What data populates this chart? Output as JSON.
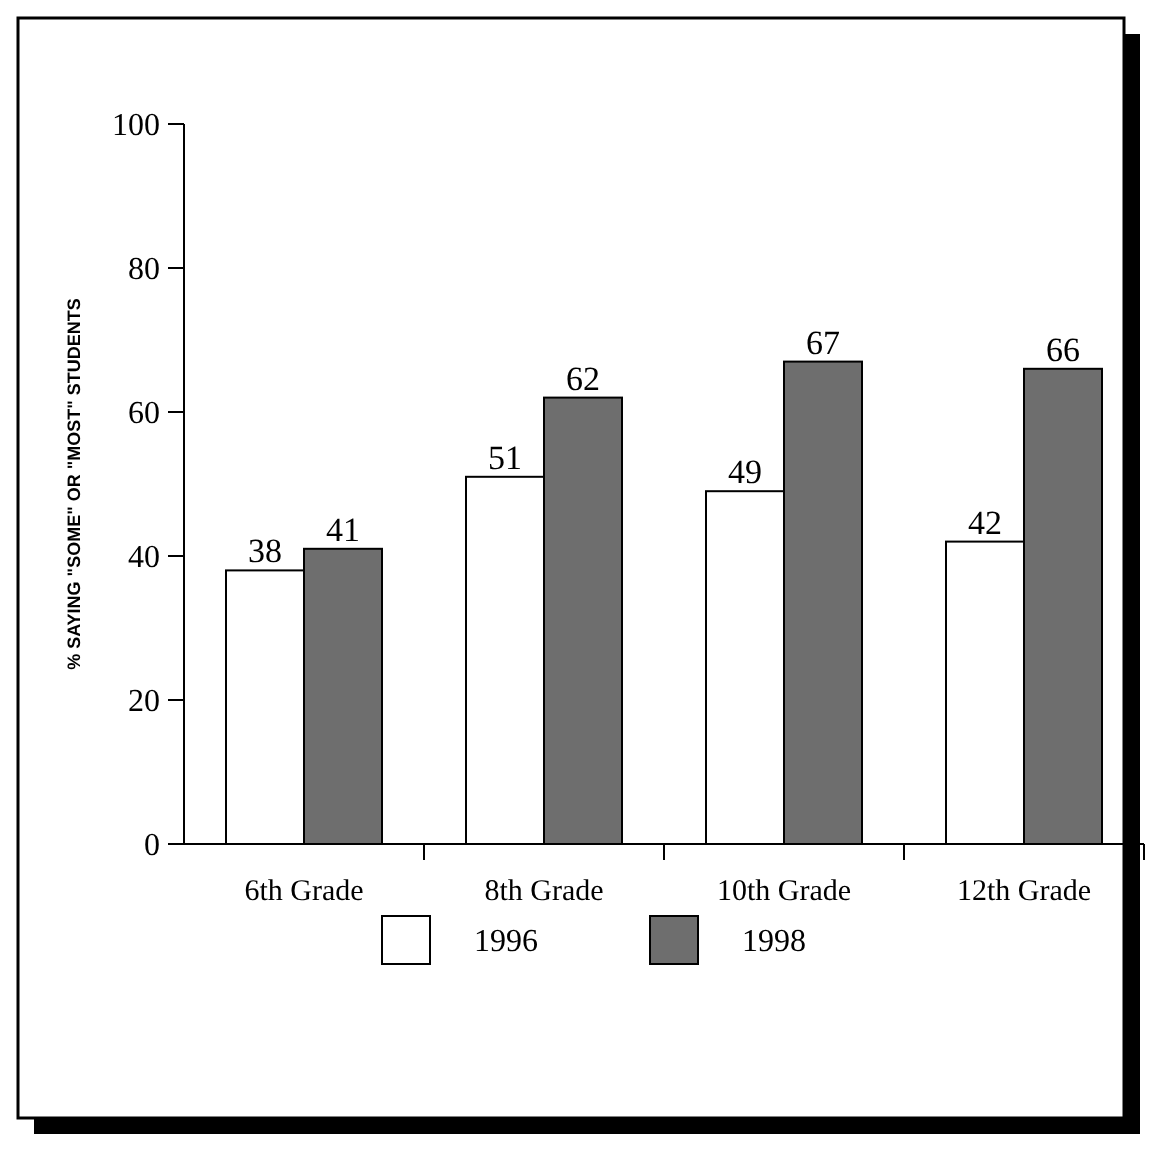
{
  "chart_data": {
    "type": "bar",
    "ylabel": "% SAYING \"SOME\" OR \"MOST\" STUDENTS",
    "categories": [
      "6th Grade",
      "8th Grade",
      "10th Grade",
      "12th Grade"
    ],
    "series": [
      {
        "name": "1996",
        "color": "#ffffff",
        "values": [
          38,
          51,
          49,
          42
        ]
      },
      {
        "name": "1998",
        "color": "#6e6e6e",
        "values": [
          41,
          62,
          67,
          66
        ]
      }
    ],
    "ylim": [
      0,
      100
    ],
    "yticks": [
      0,
      20,
      40,
      60,
      80,
      100
    ],
    "data_labels": true,
    "legend": "bottom",
    "grid": false
  }
}
